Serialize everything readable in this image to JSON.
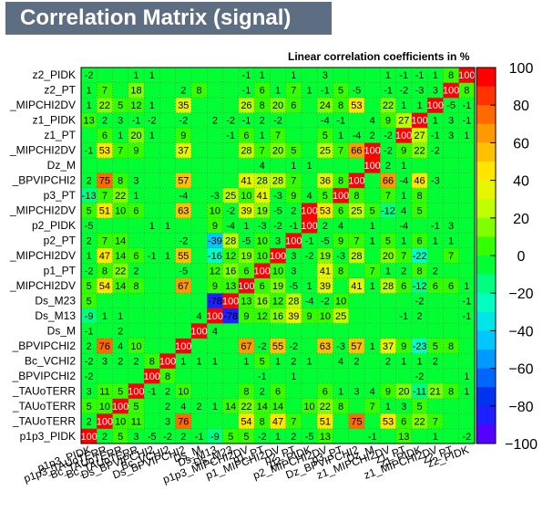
{
  "chart_data": {
    "type": "heatmap",
    "title": "Correlation Matrix (signal)",
    "subtitle": "Linear correlation coefficients in %",
    "variables": [
      "p1p3_PIDK",
      "p1p3_TAUoTERR",
      "Bc_TAUoTERR",
      "Bc_TAUoTERR",
      "Ds_BPVIPCHI2",
      "Bc_VCHI2",
      "Ds_BPVIPCHI2",
      "Ds_M",
      "Ds_M13",
      "Ds_M23",
      "p1p3_MIPCHI2DV",
      "p1_PT",
      "p1_MIPCHI2DV",
      "p2_PT",
      "p2_PIDK",
      "p2_MIPCHI2DV",
      "p3_PT",
      "Dz_BPVIPCHI2",
      "Dz_M",
      "z1_MIPCHI2DV",
      "z1_PT",
      "z1_PIDK",
      "z1_MIPCHI2DV",
      "z2_PT",
      "z2_PIDK"
    ],
    "y_labels": [
      "p1p3_PIDK",
      "_TAUoTERR",
      "_TAUoTERR",
      "_TAUoTERR",
      "_BPVIPCHI2",
      "Bc_VCHI2",
      "_BPVIPCHI2",
      "Ds_M",
      "Ds_M13",
      "Ds_M23",
      "_MIPCHI2DV",
      "p1_PT",
      "_MIPCHI2DV",
      "p2_PT",
      "p2_PIDK",
      "_MIPCHI2DV",
      "p3_PT",
      "_BPVIPCHI2",
      "Dz_M",
      "_MIPCHI2DV",
      "z1_PT",
      "z1_PIDK",
      "_MIPCHI2DV",
      "z2_PT",
      "z2_PIDK"
    ],
    "colorbar": {
      "min": -100,
      "max": 100,
      "ticks": [
        "100",
        "80",
        "60",
        "40",
        "20",
        "0",
        "−20",
        "−40",
        "−60",
        "−80",
        "−100"
      ]
    },
    "matrix": [
      [
        100,
        2,
        5,
        3,
        -5,
        -2,
        2,
        -1,
        -9,
        5,
        5,
        -2,
        1,
        2,
        -5,
        13,
        0,
        0,
        -1,
        0,
        13,
        0,
        1,
        0,
        -2
      ],
      [
        2,
        100,
        10,
        11,
        0,
        3,
        76,
        0,
        0,
        0,
        54,
        8,
        47,
        7,
        0,
        51,
        0,
        75,
        0,
        53,
        6,
        22,
        7,
        0,
        0
      ],
      [
        5,
        10,
        100,
        5,
        0,
        2,
        4,
        2,
        1,
        14,
        22,
        14,
        14,
        0,
        10,
        22,
        8,
        0,
        7,
        1,
        3,
        5,
        0,
        0,
        0
      ],
      [
        3,
        11,
        5,
        100,
        -1,
        2,
        10,
        0,
        0,
        0,
        8,
        2,
        6,
        0,
        0,
        6,
        1,
        3,
        4,
        9,
        20,
        -11,
        21,
        8,
        1
      ],
      [
        -2,
        0,
        0,
        0,
        100,
        8,
        0,
        0,
        0,
        0,
        0,
        -1,
        0,
        1,
        0,
        0,
        0,
        0,
        0,
        0,
        0,
        -2,
        0,
        0,
        1
      ],
      [
        -2,
        3,
        2,
        2,
        8,
        100,
        1,
        1,
        1,
        0,
        1,
        5,
        1,
        2,
        1,
        0,
        4,
        2,
        0,
        2,
        1,
        1,
        2,
        0,
        0
      ],
      [
        2,
        76,
        4,
        10,
        0,
        0,
        100,
        0,
        0,
        0,
        67,
        -2,
        55,
        -2,
        0,
        63,
        -3,
        57,
        1,
        37,
        9,
        -23,
        5,
        8,
        0
      ],
      [
        -1,
        0,
        2,
        0,
        0,
        0,
        0,
        100,
        4,
        0,
        0,
        0,
        0,
        0,
        0,
        0,
        0,
        0,
        0,
        0,
        0,
        0,
        0,
        0,
        0
      ],
      [
        -9,
        1,
        1,
        0,
        0,
        0,
        0,
        4,
        100,
        -78,
        9,
        12,
        16,
        39,
        9,
        10,
        25,
        0,
        0,
        0,
        -1,
        2,
        0,
        0,
        -1
      ],
      [
        5,
        0,
        0,
        0,
        0,
        0,
        0,
        0,
        -78,
        100,
        13,
        16,
        12,
        28,
        -4,
        -2,
        10,
        0,
        0,
        0,
        0,
        -2,
        0,
        0,
        -1
      ],
      [
        5,
        54,
        14,
        8,
        0,
        0,
        67,
        0,
        9,
        13,
        100,
        6,
        19,
        -5,
        1,
        39,
        0,
        41,
        1,
        28,
        6,
        -12,
        6,
        6,
        1
      ],
      [
        -2,
        8,
        22,
        2,
        0,
        0,
        -5,
        0,
        12,
        16,
        6,
        100,
        10,
        3,
        0,
        41,
        8,
        0,
        7,
        1,
        2,
        8,
        2,
        0,
        0
      ],
      [
        1,
        47,
        14,
        6,
        -1,
        1,
        55,
        0,
        -16,
        12,
        19,
        10,
        100,
        3,
        -2,
        19,
        -3,
        28,
        0,
        20,
        7,
        -22,
        0,
        7,
        0
      ],
      [
        2,
        7,
        14,
        0,
        0,
        0,
        -2,
        0,
        -39,
        28,
        -5,
        10,
        3,
        100,
        -1,
        -5,
        9,
        7,
        1,
        5,
        1,
        6,
        1,
        1,
        0
      ],
      [
        -5,
        0,
        0,
        0,
        1,
        1,
        0,
        0,
        9,
        -4,
        1,
        -3,
        -2,
        -1,
        100,
        2,
        4,
        0,
        1,
        0,
        -4,
        0,
        -1,
        3,
        0
      ],
      [
        5,
        51,
        10,
        6,
        0,
        0,
        63,
        0,
        10,
        -2,
        39,
        19,
        -5,
        2,
        100,
        53,
        6,
        25,
        5,
        -12,
        4,
        5,
        0,
        0,
        0
      ],
      [
        -13,
        7,
        22,
        1,
        0,
        0,
        -4,
        0,
        -3,
        25,
        10,
        41,
        -3,
        9,
        4,
        5,
        100,
        8,
        0,
        7,
        1,
        8,
        0,
        0,
        0
      ],
      [
        2,
        75,
        8,
        3,
        0,
        0,
        57,
        0,
        0,
        0,
        41,
        28,
        28,
        7,
        0,
        36,
        8,
        100,
        0,
        66,
        -4,
        46,
        -3,
        0,
        0
      ],
      [
        0,
        0,
        0,
        0,
        0,
        0,
        0,
        0,
        0,
        0,
        0,
        4,
        0,
        1,
        1,
        0,
        0,
        0,
        100,
        2,
        1,
        0,
        0,
        0,
        0
      ],
      [
        -1,
        53,
        7,
        9,
        0,
        0,
        37,
        0,
        0,
        0,
        28,
        7,
        20,
        5,
        0,
        25,
        7,
        66,
        100,
        -2,
        9,
        22,
        -2,
        0,
        0
      ],
      [
        0,
        6,
        1,
        20,
        1,
        0,
        9,
        0,
        0,
        -1,
        6,
        1,
        7,
        0,
        0,
        5,
        1,
        -4,
        2,
        -2,
        100,
        27,
        -1,
        3,
        1
      ],
      [
        13,
        2,
        3,
        -1,
        -2,
        0,
        -2,
        0,
        2,
        -2,
        -1,
        2,
        -2,
        0,
        0,
        -4,
        -1,
        0,
        4,
        9,
        27,
        100,
        1,
        3,
        -1
      ],
      [
        1,
        22,
        5,
        12,
        1,
        0,
        35,
        0,
        0,
        0,
        26,
        8,
        20,
        6,
        0,
        24,
        8,
        53,
        0,
        22,
        1,
        1,
        100,
        -5,
        -1
      ],
      [
        1,
        7,
        0,
        18,
        0,
        0,
        2,
        8,
        0,
        0,
        -1,
        6,
        1,
        7,
        1,
        -1,
        5,
        -5,
        0,
        -1,
        -2,
        -3,
        3,
        100,
        8
      ],
      [
        -2,
        0,
        0,
        1,
        1,
        0,
        0,
        0,
        0,
        0,
        -1,
        1,
        0,
        1,
        0,
        3,
        0,
        0,
        0,
        1,
        -1,
        -1,
        1,
        8,
        100
      ]
    ]
  }
}
